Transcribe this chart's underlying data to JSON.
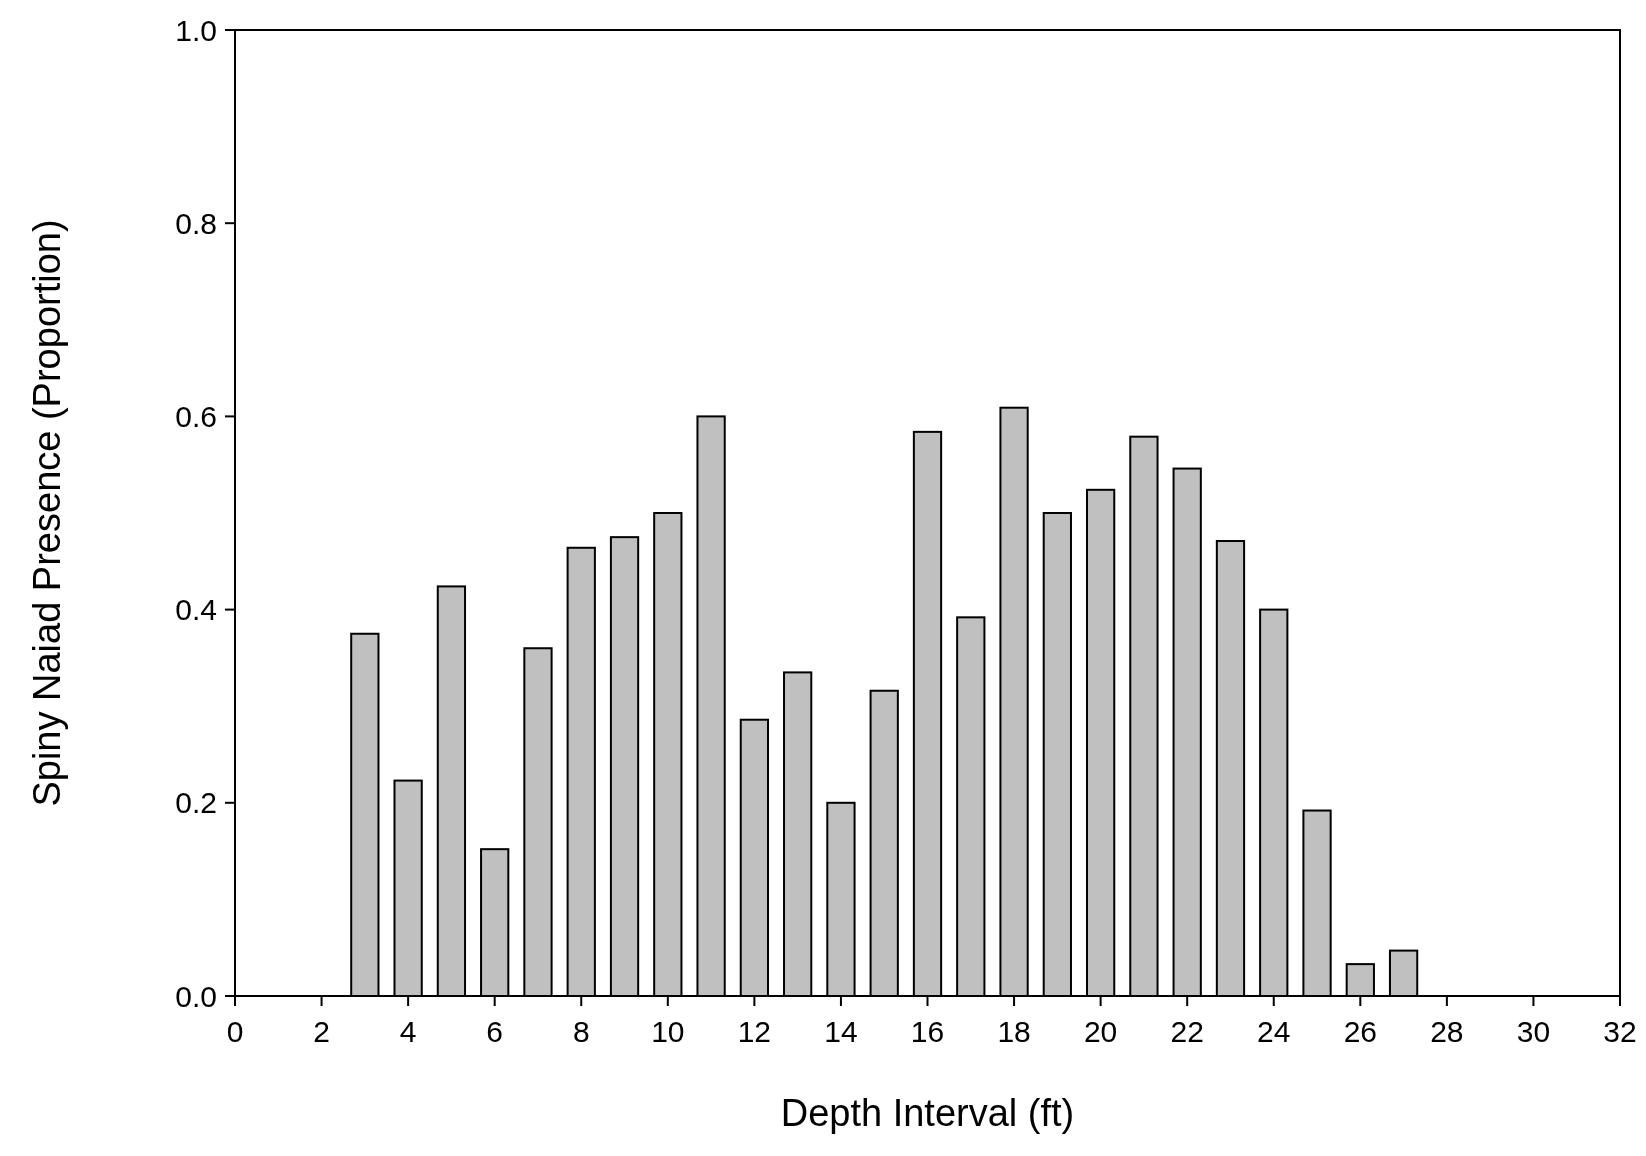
{
  "chart_data": {
    "type": "bar",
    "xlabel": "Depth Interval (ft)",
    "ylabel": "Spiny Naiad Presence (Proportion)",
    "x": [
      3,
      4,
      5,
      6,
      7,
      8,
      9,
      10,
      11,
      12,
      13,
      14,
      15,
      16,
      17,
      18,
      19,
      20,
      21,
      22,
      23,
      24,
      25,
      26,
      27
    ],
    "values": [
      0.375,
      0.223,
      0.424,
      0.152,
      0.36,
      0.464,
      0.475,
      0.5,
      0.6,
      0.286,
      0.335,
      0.2,
      0.316,
      0.584,
      0.392,
      0.609,
      0.5,
      0.524,
      0.579,
      0.546,
      0.471,
      0.4,
      0.192,
      0.033,
      0.047
    ],
    "color": "#c0c0c0",
    "xlim": [
      0,
      32
    ],
    "xticks": [
      0,
      2,
      4,
      6,
      8,
      10,
      12,
      14,
      16,
      18,
      20,
      22,
      24,
      26,
      28,
      30,
      32
    ],
    "ylim": [
      0,
      1
    ],
    "yticks": [
      {
        "value": 0,
        "label": "0.0"
      },
      {
        "value": 0.2,
        "label": "0.2"
      },
      {
        "value": 0.4,
        "label": "0.4"
      },
      {
        "value": 0.6,
        "label": "0.6"
      },
      {
        "value": 0.8,
        "label": "0.8"
      },
      {
        "value": 1,
        "label": "1.0"
      }
    ],
    "grid": false
  }
}
